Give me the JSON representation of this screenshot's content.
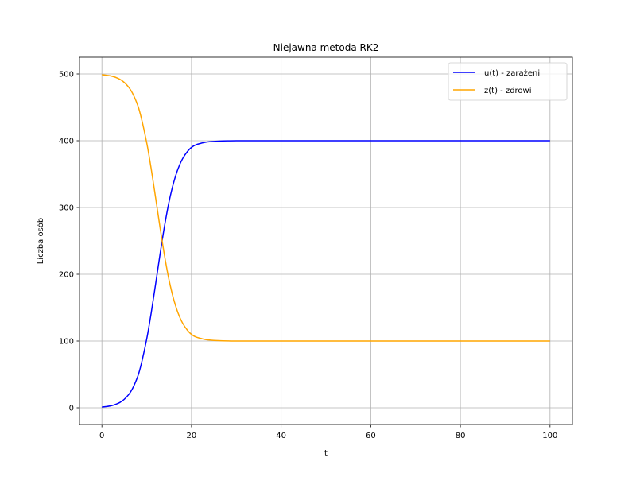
{
  "chart_data": {
    "type": "line",
    "title": "Niejawna metoda RK2",
    "xlabel": "t",
    "ylabel": "Liczba osób",
    "xlim": [
      -5,
      105
    ],
    "ylim": [
      -25,
      525
    ],
    "xticks": [
      0,
      20,
      40,
      60,
      80,
      100
    ],
    "yticks": [
      0,
      100,
      200,
      300,
      400,
      500
    ],
    "grid": true,
    "legend_position": "top-right",
    "series": [
      {
        "name": "u(t) - zarażeni",
        "color": "#0000ff",
        "x": [
          0,
          2,
          4,
          6,
          8,
          10,
          11,
          12,
          13,
          14,
          15,
          16,
          17,
          18,
          19,
          20,
          21,
          22,
          23,
          24,
          26,
          28,
          30,
          32,
          35,
          40,
          50,
          60,
          70,
          80,
          90,
          100
        ],
        "values": [
          1,
          3,
          8,
          20,
          47,
          103,
          142,
          186,
          231,
          273,
          309,
          337,
          358,
          373,
          383,
          390,
          394,
          396,
          397.6,
          398.5,
          399.4,
          399.8,
          400,
          400,
          400,
          400,
          400,
          400,
          400,
          400,
          400,
          400
        ]
      },
      {
        "name": "z(t) - zdrowi",
        "color": "#ffa500",
        "x": [
          0,
          2,
          4,
          6,
          8,
          10,
          11,
          12,
          13,
          14,
          15,
          16,
          17,
          18,
          19,
          20,
          21,
          22,
          23,
          24,
          26,
          28,
          30,
          32,
          35,
          40,
          50,
          60,
          70,
          80,
          90,
          100
        ],
        "values": [
          499,
          497,
          492,
          480,
          453,
          397,
          358,
          314,
          269,
          227,
          191,
          163,
          142,
          127,
          117,
          110,
          106,
          104,
          102.4,
          101.5,
          100.6,
          100.2,
          100,
          100,
          100,
          100,
          100,
          100,
          100,
          100,
          100,
          100
        ]
      }
    ]
  }
}
